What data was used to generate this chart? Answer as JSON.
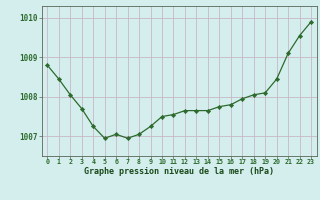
{
  "x": [
    0,
    1,
    2,
    3,
    4,
    5,
    6,
    7,
    8,
    9,
    10,
    11,
    12,
    13,
    14,
    15,
    16,
    17,
    18,
    19,
    20,
    21,
    22,
    23
  ],
  "y": [
    1008.8,
    1008.45,
    1008.05,
    1007.7,
    1007.25,
    1006.95,
    1007.05,
    1006.95,
    1007.05,
    1007.25,
    1007.5,
    1007.55,
    1007.65,
    1007.65,
    1007.65,
    1007.75,
    1007.8,
    1007.95,
    1008.05,
    1008.1,
    1008.45,
    1009.1,
    1009.55,
    1009.9
  ],
  "line_color": "#2d6a2d",
  "marker_color": "#2d6a2d",
  "bg_color": "#d4eeed",
  "grid_color": "#c8b8c8",
  "xlabel": "Graphe pression niveau de la mer (hPa)",
  "xlabel_color": "#1a4a1a",
  "tick_label_color": "#2d6a2d",
  "ylim": [
    1006.5,
    1010.3
  ],
  "yticks": [
    1007,
    1008,
    1009,
    1010
  ],
  "xticks": [
    0,
    1,
    2,
    3,
    4,
    5,
    6,
    7,
    8,
    9,
    10,
    11,
    12,
    13,
    14,
    15,
    16,
    17,
    18,
    19,
    20,
    21,
    22,
    23
  ],
  "xtick_labels": [
    "0",
    "1",
    "2",
    "3",
    "4",
    "5",
    "6",
    "7",
    "8",
    "9",
    "10",
    "11",
    "12",
    "13",
    "14",
    "15",
    "16",
    "17",
    "18",
    "19",
    "20",
    "21",
    "22",
    "23"
  ]
}
